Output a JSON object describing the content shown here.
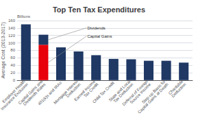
{
  "chart_data": {
    "type": "bar",
    "title": "Top Ten Tax Expenditures",
    "ylabel": "Average Cost (2013-2017)",
    "annotations": [
      "Billions"
    ],
    "categories": [
      "Employer Health\nInsurance Exclusion",
      "Capital Gains and\nDividends Rates",
      "401(k)s and IRAs",
      "Mortgage Interest\nDeduction",
      "Earned Income\nTax Credit",
      "Child Tax Credit",
      "State and Local\nTax Deduction",
      "Deferral of Foreign\nSource Income",
      "Step-up Basis for\nCapital Gains at Death",
      "Charitable\nDeduction"
    ],
    "series": [
      {
        "color": "#1F3864",
        "values": [
          150,
          null,
          88,
          77,
          67,
          57,
          56,
          52,
          52,
          47
        ]
      },
      {
        "name": "Capital Gains",
        "color": "#E8000A",
        "values": [
          null,
          95,
          null,
          null,
          null,
          null,
          null,
          null,
          null,
          null
        ]
      },
      {
        "name": "Dividends",
        "color": "#1F3864",
        "values": [
          null,
          27,
          null,
          null,
          null,
          null,
          null,
          null,
          null,
          null
        ]
      }
    ],
    "stacked": true,
    "ylim": [
      0,
      160
    ],
    "yticks": [
      0,
      20,
      40,
      60,
      80,
      100,
      120,
      140,
      160
    ],
    "grid": true
  }
}
